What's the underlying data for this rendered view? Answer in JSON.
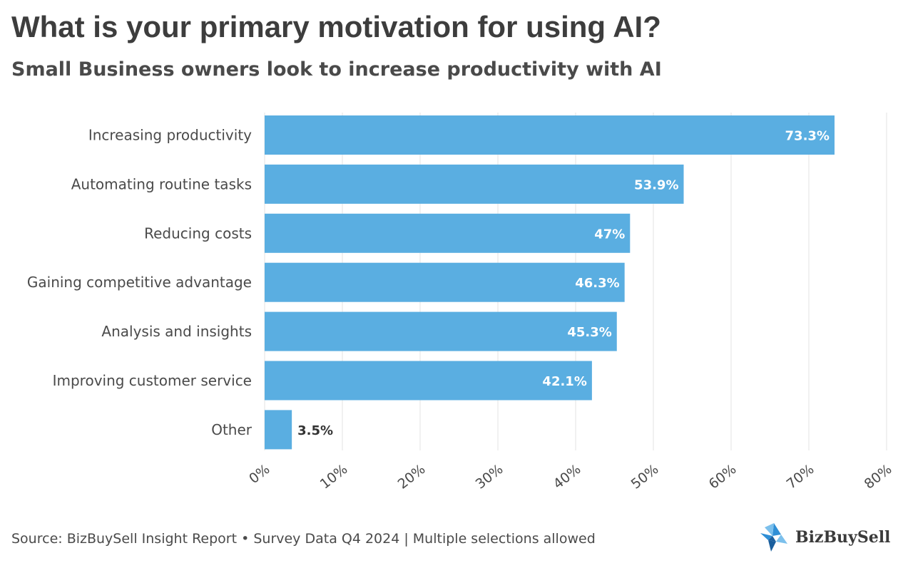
{
  "header": {
    "title": "What is your primary motivation for using AI?",
    "subtitle": "Small Business owners look to increase productivity with AI"
  },
  "chart_data": {
    "type": "bar",
    "orientation": "horizontal",
    "categories": [
      "Increasing productivity",
      "Automating routine tasks",
      "Reducing costs",
      "Gaining competitive advantage",
      "Analysis and insights",
      "Improving customer service",
      "Other"
    ],
    "values": [
      73.3,
      53.9,
      47,
      46.3,
      45.3,
      42.1,
      3.5
    ],
    "value_labels": [
      "73.3%",
      "53.9%",
      "47%",
      "46.3%",
      "45.3%",
      "42.1%",
      "3.5%"
    ],
    "xlim": [
      0,
      80
    ],
    "x_ticks": [
      "0%",
      "10%",
      "20%",
      "30%",
      "40%",
      "50%",
      "60%",
      "70%",
      "80%"
    ],
    "grid": true,
    "legend": "none",
    "bar_color": "#5aaee1"
  },
  "footer": {
    "source": "Source: BizBuySell Insight Report • Survey Data Q4 2024 | Multiple selections allowed",
    "logo_text": "BizBuySell",
    "logo_colors": [
      "#2f8fd6",
      "#7cc0ec",
      "#1a5f9e"
    ]
  }
}
